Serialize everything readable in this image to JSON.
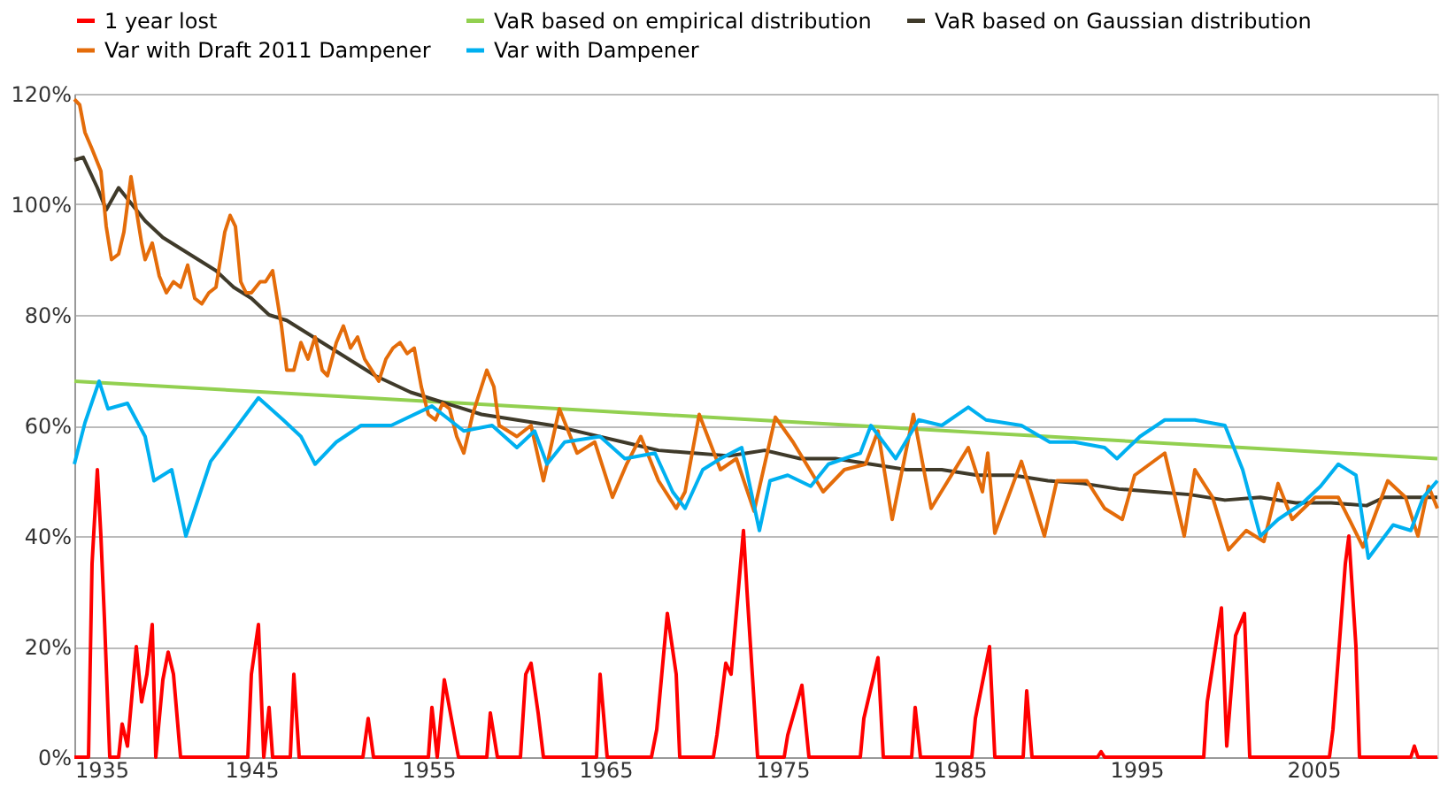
{
  "chart_data": {
    "type": "line",
    "xlim": [
      1935,
      2012
    ],
    "xticks": [
      1935,
      1945,
      1955,
      1965,
      1975,
      1985,
      1995,
      2005
    ],
    "ylim": [
      0,
      120
    ],
    "yticks": [
      {
        "value": 0,
        "label": "0%"
      },
      {
        "value": 20,
        "label": "20%"
      },
      {
        "value": 40,
        "label": "40%"
      },
      {
        "value": 60,
        "label": "60%"
      },
      {
        "value": 80,
        "label": "80%"
      },
      {
        "value": 100,
        "label": "100%"
      },
      {
        "value": 120,
        "label": "120%"
      }
    ],
    "grid": "y",
    "legend": "top",
    "marker": "none",
    "line_style": "solid",
    "series": [
      {
        "name": "1 year lost",
        "color": "#ff0000",
        "x": [
          1935,
          1935.8,
          1936.0,
          1936.3,
          1936.5,
          1936.7,
          1937.0,
          1937.5,
          1937.7,
          1938.0,
          1938.5,
          1938.8,
          1939.1,
          1939.4,
          1939.6,
          1940.0,
          1940.3,
          1940.6,
          1941.0,
          1944.8,
          1945.0,
          1945.4,
          1945.7,
          1946.0,
          1946.2,
          1947.2,
          1947.4,
          1947.7,
          1951.3,
          1951.6,
          1951.9,
          1955.0,
          1955.2,
          1955.5,
          1955.9,
          1956.3,
          1956.7,
          1958.3,
          1958.5,
          1958.9,
          1960.2,
          1960.5,
          1960.8,
          1961.2,
          1961.5,
          1964.5,
          1964.7,
          1965.1,
          1967.6,
          1967.9,
          1968.5,
          1969.0,
          1969.2,
          1971.1,
          1971.3,
          1971.8,
          1972.1,
          1972.8,
          1973.0,
          1973.6,
          1975.1,
          1975.3,
          1976.1,
          1976.5,
          1979.4,
          1979.6,
          1980.4,
          1980.7,
          1982.3,
          1982.5,
          1982.8,
          1985.7,
          1985.9,
          1986.7,
          1987.0,
          1988.6,
          1988.8,
          1989.1,
          1992.8,
          1993.0,
          1993.2,
          1998.8,
          1999.0,
          1999.8,
          2000.1,
          2000.3,
          2000.6,
          2001.1,
          2001.4,
          2005.9,
          2006.1,
          2006.8,
          2007.0,
          2007.4,
          2007.6,
          2010.5,
          2010.7,
          2010.9,
          2012
        ],
        "values": [
          0,
          0,
          35,
          52,
          40,
          25,
          0,
          0,
          6,
          2,
          20,
          10,
          15,
          24,
          0,
          14,
          19,
          15,
          0,
          0,
          15,
          24,
          0,
          9,
          0,
          0,
          15,
          0,
          0,
          7,
          0,
          0,
          9,
          0,
          14,
          7,
          0,
          0,
          8,
          0,
          0,
          15,
          17,
          8,
          0,
          0,
          15,
          0,
          0,
          5,
          26,
          15,
          0,
          0,
          4,
          17,
          15,
          41,
          30,
          0,
          0,
          4,
          13,
          0,
          0,
          7,
          18,
          0,
          0,
          9,
          0,
          0,
          7,
          20,
          0,
          0,
          12,
          0,
          0,
          1,
          0,
          0,
          10,
          27,
          2,
          10,
          22,
          26,
          0,
          0,
          5,
          35,
          40,
          20,
          0,
          0,
          2,
          0,
          0
        ]
      },
      {
        "name": "VaR based on empirical distribution",
        "color": "#92d050",
        "x": [
          1935,
          2012
        ],
        "values": [
          68,
          54
        ]
      },
      {
        "name": "VaR based on Gaussian distribution",
        "color": "#3f3a2a",
        "x": [
          1935,
          1935.5,
          1936.3,
          1936.8,
          1937.5,
          1938,
          1939,
          1940,
          1941,
          1942,
          1943,
          1944,
          1945,
          1946,
          1947,
          1948,
          1950,
          1952,
          1954,
          1956,
          1958,
          1960,
          1962,
          1964,
          1966,
          1968,
          1970,
          1972,
          1973,
          1974,
          1976,
          1978,
          1980,
          1982,
          1984,
          1986,
          1988,
          1990,
          1992,
          1994,
          1996,
          1998,
          2000,
          2002,
          2004,
          2006,
          2008,
          2009,
          2012
        ],
        "values": [
          108,
          108.5,
          103,
          99,
          103,
          101,
          97,
          94,
          92,
          90,
          88,
          85,
          83,
          80,
          79,
          77,
          73,
          69,
          66,
          64,
          62,
          61,
          60,
          58.5,
          57,
          55.5,
          55,
          54.5,
          55,
          55.5,
          54,
          54,
          53,
          52,
          52,
          51,
          51,
          50,
          49.5,
          48.5,
          48,
          47.5,
          46.5,
          47,
          46,
          46,
          45.5,
          47,
          47
        ]
      },
      {
        "name": "Var with Draft 2011 Dampener",
        "color": "#e46c0a",
        "x": [
          1935,
          1935.3,
          1935.6,
          1936,
          1936.5,
          1936.8,
          1937.1,
          1937.5,
          1937.8,
          1938.2,
          1938.5,
          1938.8,
          1939,
          1939.4,
          1939.8,
          1940.2,
          1940.6,
          1941,
          1941.4,
          1941.8,
          1942.2,
          1942.6,
          1943,
          1943.5,
          1943.8,
          1944.1,
          1944.4,
          1944.7,
          1945,
          1945.5,
          1945.8,
          1946.2,
          1946.4,
          1946.7,
          1947,
          1947.4,
          1947.8,
          1948.2,
          1948.6,
          1949,
          1949.3,
          1949.8,
          1950.2,
          1950.6,
          1951,
          1951.4,
          1951.8,
          1952.2,
          1952.6,
          1953,
          1953.4,
          1953.8,
          1954.2,
          1954.6,
          1955,
          1955.4,
          1955.8,
          1956.2,
          1956.6,
          1957,
          1957.5,
          1958.3,
          1958.7,
          1959,
          1960,
          1960.8,
          1961.5,
          1962.4,
          1963.4,
          1964.4,
          1965.4,
          1966.2,
          1967,
          1968,
          1969,
          1969.5,
          1970.3,
          1971.5,
          1972.4,
          1973.4,
          1974.6,
          1975.6,
          1977.3,
          1978.5,
          1979.7,
          1980.4,
          1981.2,
          1982.4,
          1983.4,
          1985.5,
          1986.3,
          1986.6,
          1987,
          1988.5,
          1989.8,
          1990.5,
          1992.2,
          1993.2,
          1994.2,
          1994.9,
          1996.6,
          1997.7,
          1998.3,
          1999.3,
          2000.2,
          2001.2,
          2002.2,
          2003,
          2003.8,
          2005.1,
          2006.4,
          2007.8,
          2009.2,
          2010.2,
          2010.9,
          2011.5,
          2012
        ],
        "values": [
          119,
          118,
          113,
          110,
          106,
          96,
          90,
          91,
          95,
          105,
          99,
          93,
          90,
          93,
          87,
          84,
          86,
          85,
          89,
          83,
          82,
          84,
          85,
          95,
          98,
          96,
          86,
          84,
          84,
          86,
          86,
          88,
          84,
          78,
          70,
          70,
          75,
          72,
          76,
          70,
          69,
          75,
          78,
          74,
          76,
          72,
          70,
          68,
          72,
          74,
          75,
          73,
          74,
          67,
          62,
          61,
          64,
          63,
          58,
          55,
          62,
          70,
          67,
          60,
          58,
          60,
          50,
          63,
          55,
          57,
          47,
          53,
          58,
          50,
          45,
          48,
          62,
          52,
          54,
          44.5,
          61.5,
          57,
          48,
          52,
          53,
          59,
          43,
          62,
          45,
          56,
          48,
          55,
          40.5,
          53.5,
          40,
          50,
          50,
          45,
          43,
          51,
          55,
          40,
          52,
          47,
          37.5,
          41,
          39,
          49.5,
          43,
          47,
          47,
          38,
          50,
          47,
          40,
          49,
          45
        ]
      },
      {
        "name": "Var with Dampener",
        "color": "#00b0f0",
        "x": [
          1935,
          1935.6,
          1936.4,
          1936.9,
          1938,
          1939,
          1939.5,
          1940.5,
          1941.3,
          1942.7,
          1944,
          1945.4,
          1946.8,
          1947.8,
          1948.6,
          1949.8,
          1951.2,
          1952.9,
          1955.2,
          1957,
          1958.6,
          1960,
          1961,
          1961.7,
          1962.7,
          1964.7,
          1966.1,
          1967.8,
          1968.8,
          1969.5,
          1970.5,
          1971.5,
          1972.7,
          1973.7,
          1974.3,
          1975.3,
          1976.6,
          1977.6,
          1979.4,
          1980,
          1981.4,
          1982.7,
          1984,
          1985.5,
          1986.5,
          1988.5,
          1990.1,
          1991.5,
          1993.2,
          1993.9,
          1995.2,
          1996.6,
          1998.3,
          2000,
          2001,
          2002,
          2003,
          2004.4,
          2005.4,
          2006.4,
          2007.4,
          2008.1,
          2009.5,
          2010.5,
          2011.2,
          2012
        ],
        "values": [
          53,
          60.5,
          68,
          63,
          64,
          58,
          50,
          52,
          40,
          53.5,
          59,
          65,
          61,
          58,
          53,
          57,
          60,
          60,
          63.5,
          59,
          60,
          56,
          59,
          53,
          57,
          58,
          54,
          55,
          48,
          45,
          52,
          54,
          56,
          41,
          50,
          51,
          49,
          53,
          55,
          60,
          54,
          61,
          60,
          63.3,
          61,
          60,
          57,
          57,
          56,
          54,
          58,
          61,
          61,
          60,
          52,
          40,
          43,
          46,
          49,
          53,
          51,
          36,
          42,
          41,
          47,
          50
        ]
      }
    ]
  }
}
